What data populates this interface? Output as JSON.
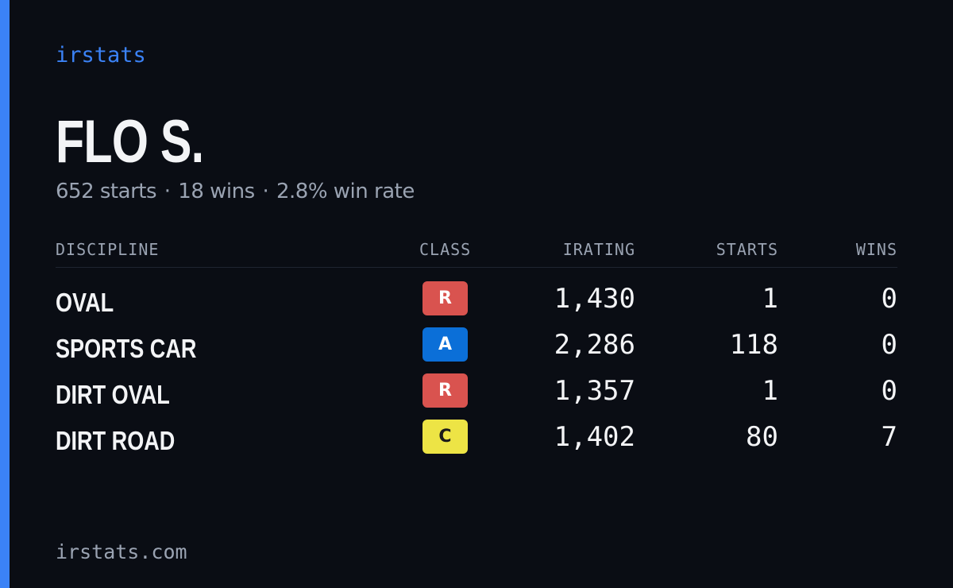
{
  "brand": "irstats",
  "driver": {
    "name": "FLO S.",
    "starts_text": "652 starts",
    "wins_text": "18 wins",
    "winrate_text": "2.8% win rate",
    "separator": "·"
  },
  "table": {
    "headers": {
      "discipline": "DISCIPLINE",
      "class": "CLASS",
      "irating": "IRATING",
      "starts": "STARTS",
      "wins": "WINS"
    },
    "rows": [
      {
        "discipline": "OVAL",
        "class": "R",
        "class_bg": "#d9534f",
        "class_fg": "#ffffff",
        "irating": "1,430",
        "starts": "1",
        "wins": "0"
      },
      {
        "discipline": "SPORTS CAR",
        "class": "A",
        "class_bg": "#0b6fd8",
        "class_fg": "#ffffff",
        "irating": "2,286",
        "starts": "118",
        "wins": "0"
      },
      {
        "discipline": "DIRT OVAL",
        "class": "R",
        "class_bg": "#d9534f",
        "class_fg": "#ffffff",
        "irating": "1,357",
        "starts": "1",
        "wins": "0"
      },
      {
        "discipline": "DIRT ROAD",
        "class": "C",
        "class_bg": "#ede445",
        "class_fg": "#1a1a1a",
        "irating": "1,402",
        "starts": "80",
        "wins": "7"
      }
    ]
  },
  "footer": "irstats.com",
  "colors": {
    "accent": "#3b82f6",
    "background": "#0a0d14",
    "muted": "#9aa3b2",
    "text": "#f3f4f6"
  }
}
